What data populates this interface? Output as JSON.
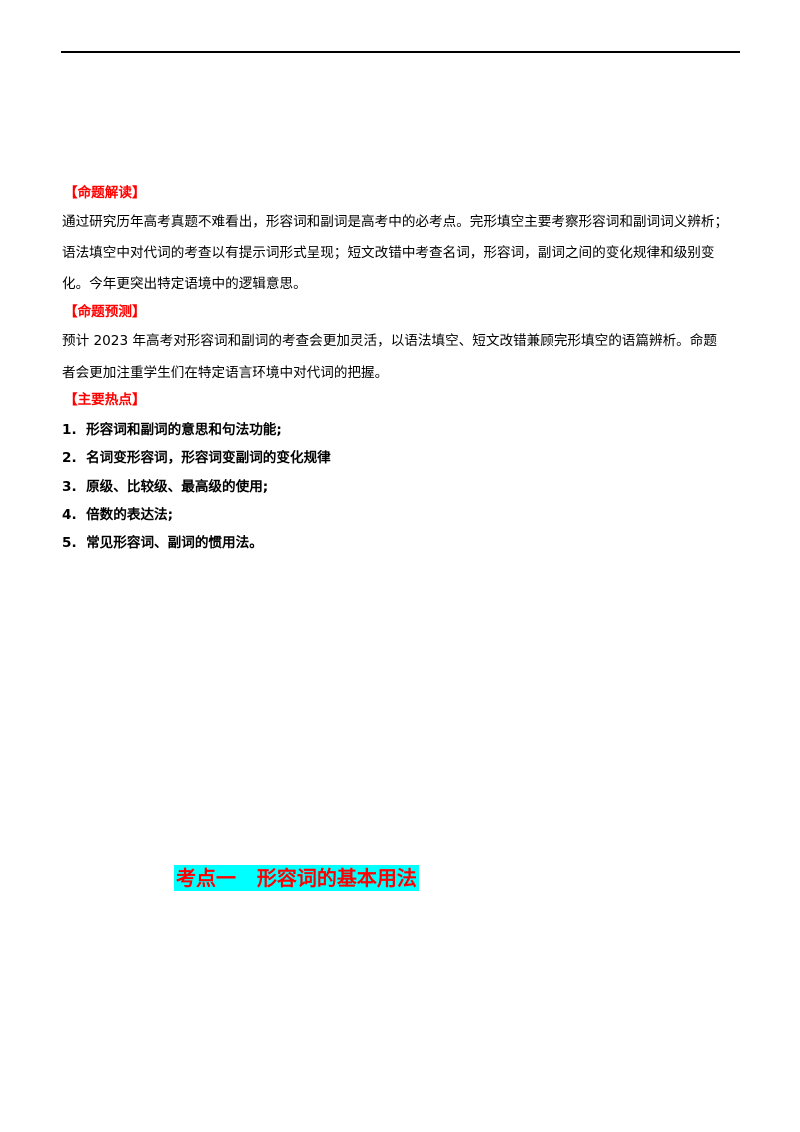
{
  "header_rule": true,
  "section1": {
    "heading": "【命题解读】",
    "lines": [
      "通过研究历年高考真题不难看出，形容词和副词是高考中的必考点。完形填空主要考察形容词和副词词义辨析；",
      "语法填空中对代词的考查以有提示词形式呈现；短文改错中考查名词，形容词，副词之间的变化规律和级别变",
      "化。今年更突出特定语境中的逻辑意思。"
    ]
  },
  "section2": {
    "heading": "【命题预测】",
    "lines": [
      "预计 2023 年高考对形容词和副词的考查会更加灵活，以语法填空、短文改错兼顾完形填空的语篇辨析。命题",
      "者会更加注重学生们在特定语言环境中对代词的把握。"
    ]
  },
  "section3": {
    "heading": "【主要热点】",
    "items": [
      "1.  形容词和副词的意思和句法功能;",
      "2.  名词变形容词，形容词变副词的变化规律",
      "3.  原级、比较级、最高级的使用;",
      "4.  倍数的表达法;",
      "5.  常见形容词、副词的惯用法。"
    ]
  },
  "topic_title": "考点一   形容词的基本用法",
  "colors": {
    "heading": "#ff0000",
    "highlight": "#00ffff"
  }
}
